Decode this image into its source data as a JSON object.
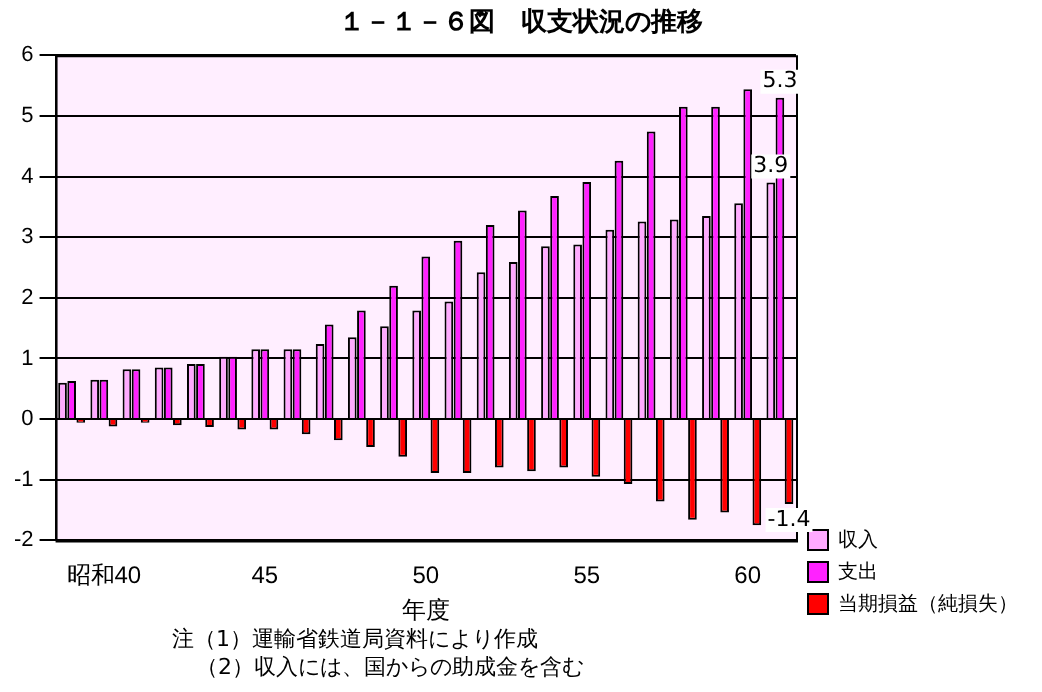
{
  "chart_data": {
    "type": "bar",
    "title": "１－１－６図　収支状況の推移",
    "xlabel": "年度",
    "categories": [
      null,
      "昭和40",
      null,
      null,
      null,
      null,
      "45",
      null,
      null,
      null,
      null,
      "50",
      null,
      null,
      null,
      null,
      "55",
      null,
      null,
      null,
      null,
      "60",
      null
    ],
    "series": [
      {
        "name": "収入",
        "color": "#ffaaff",
        "values": [
          0.6,
          0.65,
          0.82,
          0.85,
          0.91,
          1.03,
          1.15,
          1.15,
          1.24,
          1.35,
          1.53,
          1.79,
          1.94,
          2.42,
          2.59,
          2.85,
          2.88,
          3.12,
          3.26,
          3.29,
          3.35,
          3.56,
          3.9
        ],
        "value_labels": [
          null,
          null,
          null,
          null,
          null,
          null,
          null,
          null,
          null,
          null,
          null,
          null,
          null,
          null,
          null,
          null,
          null,
          null,
          null,
          null,
          null,
          null,
          "3.9"
        ]
      },
      {
        "name": "支出",
        "color": "#ff22ff",
        "values": [
          0.63,
          0.65,
          0.82,
          0.85,
          0.91,
          1.03,
          1.15,
          1.15,
          1.56,
          1.79,
          2.2,
          2.68,
          2.94,
          3.2,
          3.44,
          3.68,
          3.91,
          4.26,
          4.74,
          5.15,
          5.15,
          5.44,
          5.3
        ],
        "value_labels": [
          null,
          null,
          null,
          null,
          null,
          null,
          null,
          null,
          null,
          null,
          null,
          null,
          null,
          null,
          null,
          null,
          null,
          null,
          null,
          null,
          null,
          null,
          "5.3"
        ]
      },
      {
        "name": "当期損益（純損失）",
        "color": "#ff0000",
        "values": [
          -0.06,
          -0.12,
          -0.06,
          -0.1,
          -0.13,
          -0.17,
          -0.17,
          -0.25,
          -0.35,
          -0.46,
          -0.62,
          -0.89,
          -0.89,
          -0.8,
          -0.86,
          -0.8,
          -0.95,
          -1.07,
          -1.36,
          -1.66,
          -1.54,
          -1.75,
          -1.4
        ],
        "value_labels": [
          null,
          null,
          null,
          null,
          null,
          null,
          null,
          null,
          null,
          null,
          null,
          null,
          null,
          null,
          null,
          null,
          null,
          null,
          null,
          null,
          null,
          null,
          "-1.4"
        ]
      }
    ],
    "ylim": [
      -2,
      6
    ],
    "yticks": [
      -2,
      -1,
      0,
      1,
      2,
      3,
      4,
      5,
      6
    ],
    "grid": "y",
    "legend": "bottom right",
    "annotations": [
      "注（1）運輸省鉄道局資料により作成",
      "（2）収入には、国からの助成金を含む"
    ]
  }
}
